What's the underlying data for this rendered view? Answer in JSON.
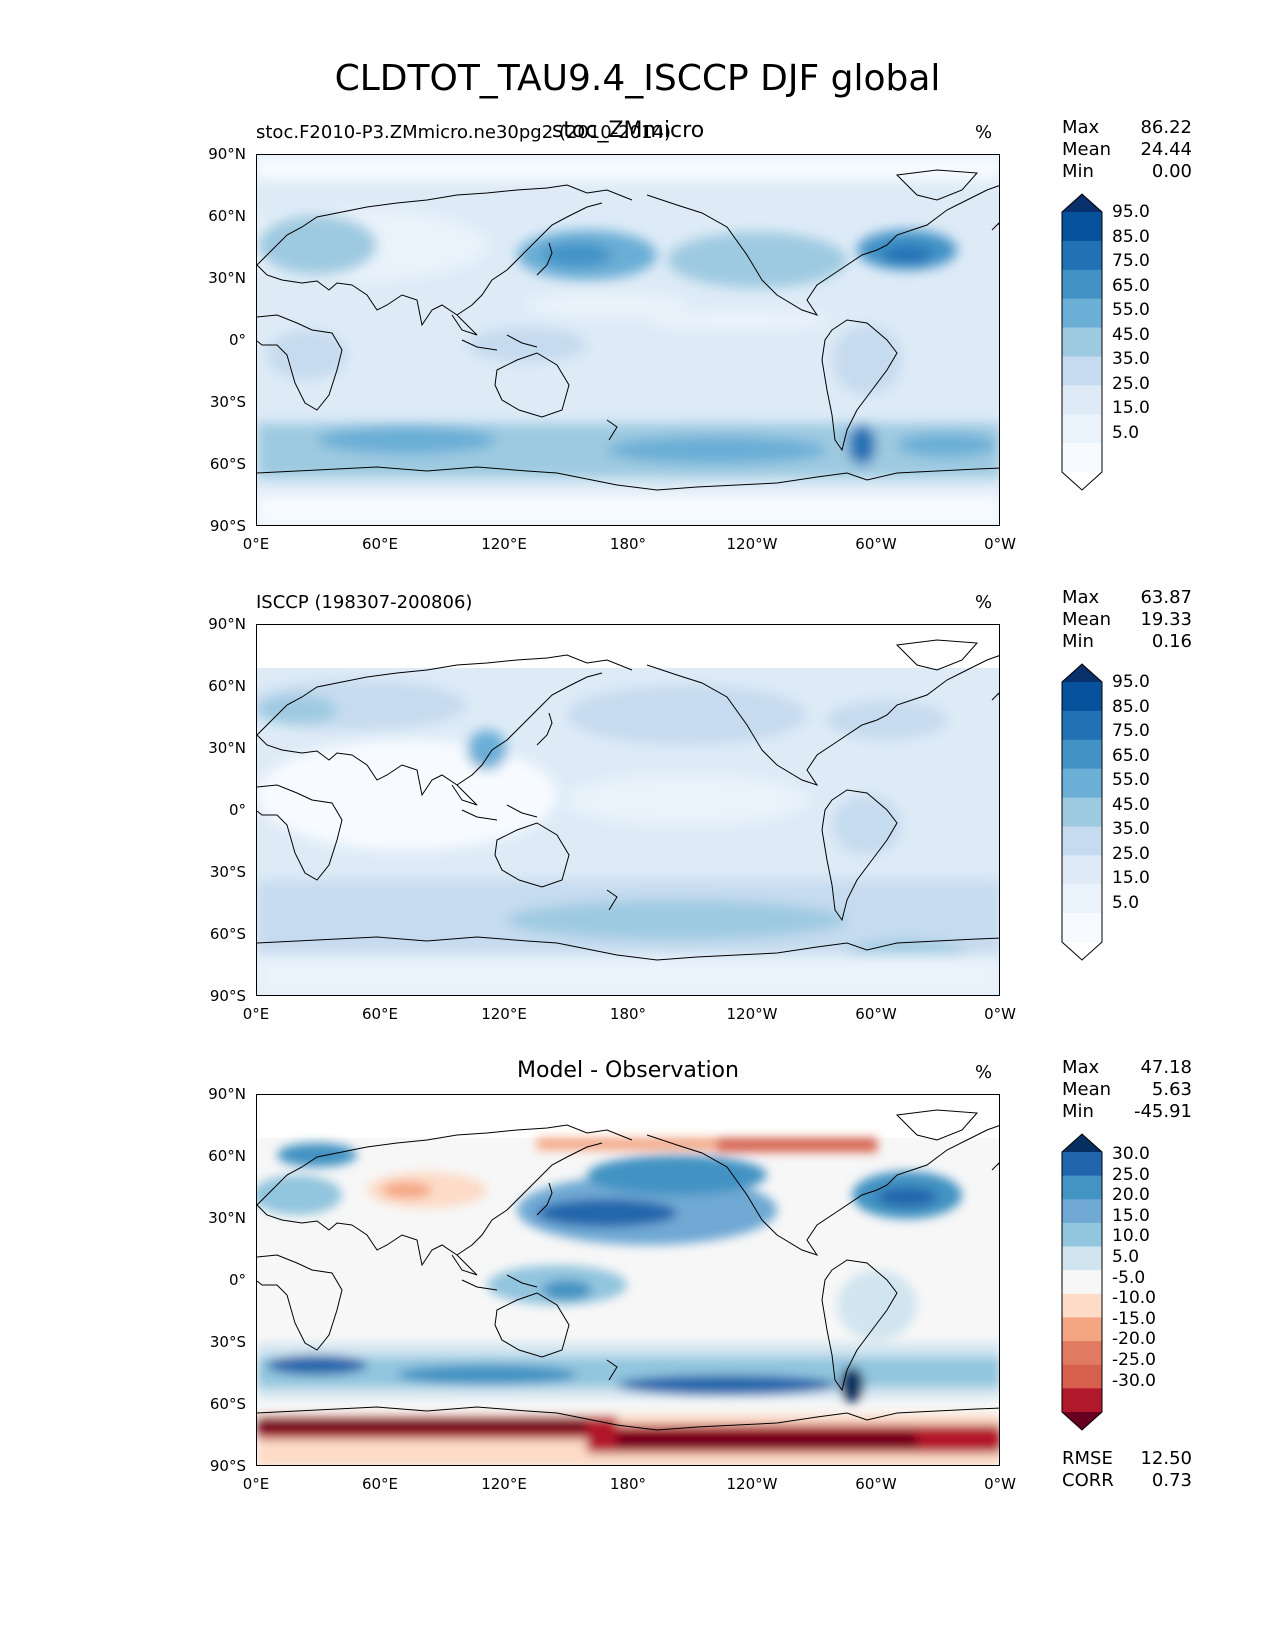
{
  "figure": {
    "title": "CLDTOT_TAU9.4_ISCCP DJF global"
  },
  "axes": {
    "lat_ticks": [
      "90°N",
      "60°N",
      "30°N",
      "0°",
      "30°S",
      "60°S",
      "90°S"
    ],
    "lon_ticks": [
      "0°E",
      "60°E",
      "120°E",
      "180°",
      "120°W",
      "60°W",
      "0°W"
    ]
  },
  "panels": [
    {
      "left_title": "stoc.F2010-P3.ZMmicro.ne30pg2 (2010-2014)",
      "center_title": "stoc_ZMmicro",
      "unit": "%",
      "stats": [
        {
          "label": "Max",
          "value": "86.22"
        },
        {
          "label": "Mean",
          "value": "24.44"
        },
        {
          "label": "Min",
          "value": "0.00"
        }
      ],
      "colorbar_labels": [
        "95.0",
        "85.0",
        "75.0",
        "65.0",
        "55.0",
        "45.0",
        "35.0",
        "25.0",
        "15.0",
        "5.0"
      ],
      "colorbar_colors": [
        "#08306b",
        "#08519c",
        "#2171b5",
        "#4292c6",
        "#6baed6",
        "#9ecae1",
        "#c6dbef",
        "#deebf7",
        "#eaf3fb",
        "#f7fbff",
        "#ffffff"
      ]
    },
    {
      "left_title": "ISCCP (198307-200806)",
      "center_title": "",
      "unit": "%",
      "stats": [
        {
          "label": "Max",
          "value": "63.87"
        },
        {
          "label": "Mean",
          "value": "19.33"
        },
        {
          "label": "Min",
          "value": "0.16"
        }
      ],
      "colorbar_labels": [
        "95.0",
        "85.0",
        "75.0",
        "65.0",
        "55.0",
        "45.0",
        "35.0",
        "25.0",
        "15.0",
        "5.0"
      ],
      "colorbar_colors": [
        "#08306b",
        "#08519c",
        "#2171b5",
        "#4292c6",
        "#6baed6",
        "#9ecae1",
        "#c6dbef",
        "#deebf7",
        "#eaf3fb",
        "#f7fbff",
        "#ffffff"
      ]
    },
    {
      "left_title": "",
      "center_title": "Model - Observation",
      "unit": "%",
      "stats": [
        {
          "label": "Max",
          "value": "47.18"
        },
        {
          "label": "Mean",
          "value": "5.63"
        },
        {
          "label": "Min",
          "value": "-45.91"
        }
      ],
      "extra_stats": [
        {
          "label": "RMSE",
          "value": "12.50"
        },
        {
          "label": "CORR",
          "value": "0.73"
        }
      ],
      "colorbar_labels": [
        "30.0",
        "25.0",
        "20.0",
        "15.0",
        "10.0",
        "5.0",
        "-5.0",
        "-10.0",
        "-15.0",
        "-20.0",
        "-25.0",
        "-30.0"
      ],
      "colorbar_colors": [
        "#053061",
        "#2166ac",
        "#4393c3",
        "#6fa9d4",
        "#92c5de",
        "#d1e5f0",
        "#f7f7f7",
        "#fddbc7",
        "#f4a582",
        "#e07b62",
        "#d6604d",
        "#b2182b",
        "#67001f"
      ]
    }
  ]
}
